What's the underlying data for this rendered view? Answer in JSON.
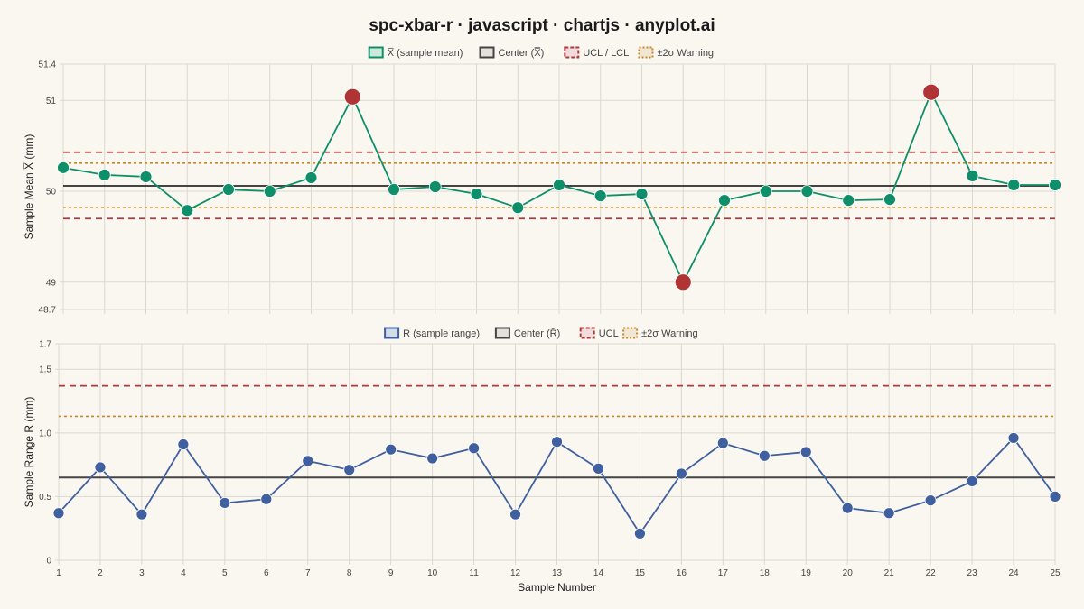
{
  "title": "spc-xbar-r · javascript · chartjs · anyplot.ai",
  "colors": {
    "background": "#faf7f1",
    "grid": "#dcd8cf",
    "xbar_line": "#0e8f6a",
    "range_line": "#3f5f9e",
    "center": "#444444",
    "limit": "#b03a3a",
    "warning": "#c8862a",
    "out_of_control": "#b03434"
  },
  "chart_data": [
    {
      "type": "line",
      "name": "xbar-chart",
      "ylabel": "Sample Mean X̅ (mm)",
      "xlabel": "",
      "ylim": [
        48.7,
        51.4
      ],
      "y_ticks": [
        48.7,
        49,
        50,
        51,
        51.4
      ],
      "y_tick_labels": [
        "48.7",
        "49",
        "50",
        "51",
        "51.4"
      ],
      "x": [
        1,
        2,
        3,
        4,
        5,
        6,
        7,
        8,
        9,
        10,
        11,
        12,
        13,
        14,
        15,
        16,
        17,
        18,
        19,
        20,
        21,
        22,
        23,
        24,
        25
      ],
      "series": [
        {
          "name": "X̅ (sample mean)",
          "values": [
            50.26,
            50.18,
            50.16,
            49.79,
            50.02,
            50.0,
            50.15,
            51.04,
            50.02,
            50.05,
            49.97,
            49.82,
            50.07,
            49.95,
            49.97,
            49.0,
            49.9,
            50.0,
            50.0,
            49.9,
            49.91,
            51.09,
            50.17,
            50.07,
            50.07
          ],
          "out_of_control_points": [
            8,
            16,
            22
          ]
        }
      ],
      "center": 50.06,
      "ucl": 50.43,
      "lcl": 49.7,
      "warning_upper": 50.31,
      "warning_lower": 49.82,
      "legend": [
        "X̅ (sample mean)",
        "Center (X̿)",
        "UCL / LCL",
        "±2σ Warning"
      ]
    },
    {
      "type": "line",
      "name": "range-chart",
      "ylabel": "Sample Range R (mm)",
      "xlabel": "Sample Number",
      "ylim": [
        0,
        1.7
      ],
      "y_ticks": [
        0,
        0.5,
        1.0,
        1.5,
        1.7
      ],
      "y_tick_labels": [
        "0",
        "0.5",
        "1.0",
        "1.5",
        "1.7"
      ],
      "x": [
        1,
        2,
        3,
        4,
        5,
        6,
        7,
        8,
        9,
        10,
        11,
        12,
        13,
        14,
        15,
        16,
        17,
        18,
        19,
        20,
        21,
        22,
        23,
        24,
        25
      ],
      "x_tick_labels": [
        "1",
        "2",
        "3",
        "4",
        "5",
        "6",
        "7",
        "8",
        "9",
        "10",
        "11",
        "12",
        "13",
        "14",
        "15",
        "16",
        "17",
        "18",
        "19",
        "20",
        "21",
        "22",
        "23",
        "24",
        "25"
      ],
      "series": [
        {
          "name": "R (sample range)",
          "values": [
            0.37,
            0.73,
            0.36,
            0.91,
            0.45,
            0.48,
            0.78,
            0.71,
            0.87,
            0.8,
            0.88,
            0.36,
            0.93,
            0.72,
            0.21,
            0.68,
            0.92,
            0.82,
            0.85,
            0.41,
            0.37,
            0.47,
            0.62,
            0.96,
            0.5
          ]
        }
      ],
      "center": 0.65,
      "ucl": 1.37,
      "warning_upper": 1.13,
      "legend": [
        "R (sample range)",
        "Center (R̄)",
        "UCL",
        "±2σ Warning"
      ]
    }
  ]
}
